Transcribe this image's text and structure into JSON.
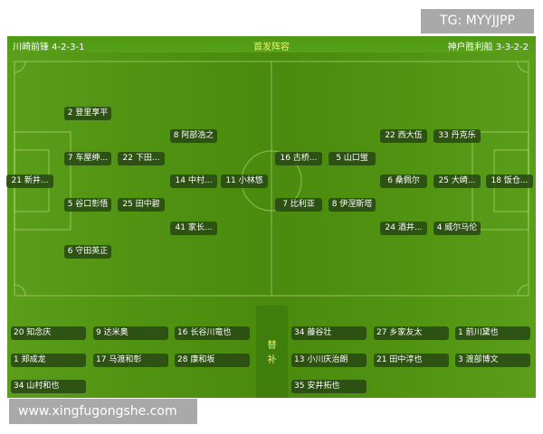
{
  "header": {
    "home": "川崎前锋 4-2-3-1",
    "title": "首发阵容",
    "away": "神户胜利船 3-3-2-2"
  },
  "home_lineup": [
    {
      "label": "2 登里享平",
      "pos": "LB"
    },
    {
      "label": "8 阿部浩之",
      "pos": "LAM"
    },
    {
      "label": "7 车屋绅...",
      "pos": "LCB"
    },
    {
      "label": "22 下田...",
      "pos": "LDM"
    },
    {
      "label": "21 新井...",
      "pos": "GK"
    },
    {
      "label": "14 中村...",
      "pos": "CAM"
    },
    {
      "label": "11 小林悠",
      "pos": "ST"
    },
    {
      "label": "5 谷口彰悟",
      "pos": "RCB"
    },
    {
      "label": "25 田中碧",
      "pos": "RDM"
    },
    {
      "label": "41 家长...",
      "pos": "RAM"
    },
    {
      "label": "6 守田英正",
      "pos": "RB"
    }
  ],
  "away_lineup": [
    {
      "label": "22 西大伍"
    },
    {
      "label": "33 丹克乐"
    },
    {
      "label": "16 古桥..."
    },
    {
      "label": "5 山口蛍"
    },
    {
      "label": "6 桑佩尔"
    },
    {
      "label": "25 大崎..."
    },
    {
      "label": "18 饭仓..."
    },
    {
      "label": "7 比利亚"
    },
    {
      "label": "8 伊涅斯塔"
    },
    {
      "label": "24 酒井..."
    },
    {
      "label": "4 威尔马伦"
    }
  ],
  "subs_label": [
    "替",
    "补"
  ],
  "home_subs": [
    "20 知念庆",
    "9 达米奥",
    "16 长谷川竜也",
    "1 郑成龙",
    "17 马渡和彰",
    "28 康和坂",
    "34 山村和也"
  ],
  "away_subs": [
    "34 藤谷壮",
    "27 乡家友太",
    "1 前川黛也",
    "13 小川庆治朗",
    "21 田中淳也",
    "3 渡部博文",
    "35 安井拓也"
  ],
  "watermarks": {
    "top": "TG: MYYJJPP",
    "bottom": "www.xingfugongshe.com"
  },
  "colors": {
    "pitch": "#4f9110",
    "chip": "#284614",
    "title": "#f4f06a"
  }
}
